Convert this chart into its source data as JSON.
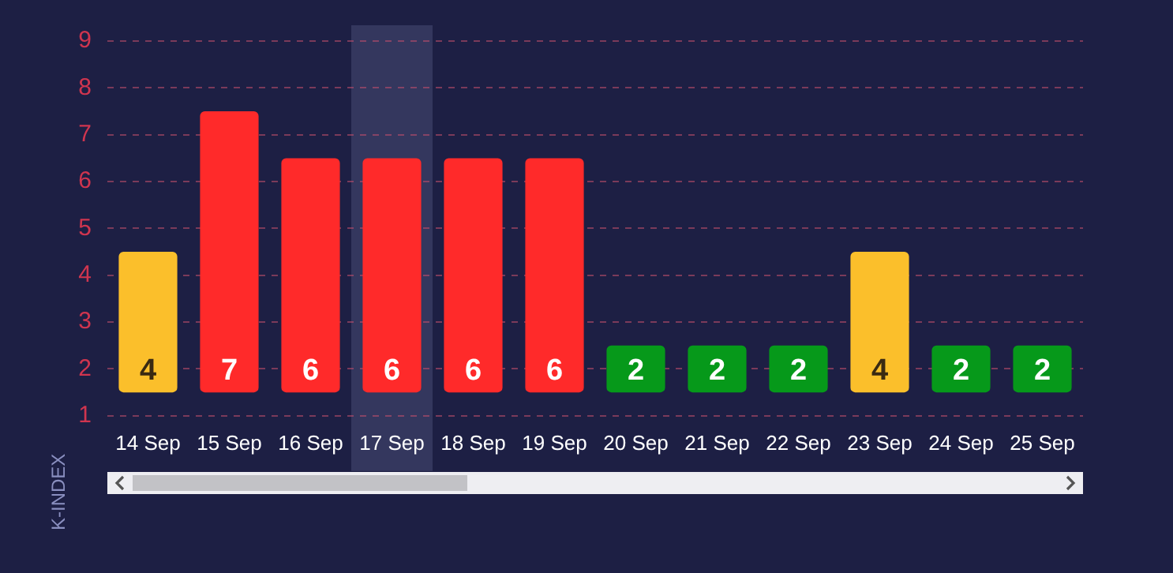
{
  "chart_data": {
    "type": "bar",
    "ylabel": "K-INDEX",
    "categories": [
      "14 Sep",
      "15 Sep",
      "16 Sep",
      "17 Sep",
      "18 Sep",
      "19 Sep",
      "20 Sep",
      "21 Sep",
      "22 Sep",
      "23 Sep",
      "24 Sep",
      "25 Sep"
    ],
    "base": [
      1.5,
      1.5,
      1.5,
      1.5,
      1.5,
      1.5,
      1.5,
      1.5,
      1.5,
      1.5,
      1.5,
      1.5
    ],
    "values": [
      3,
      6,
      5,
      5,
      5,
      5,
      1,
      1,
      1,
      3,
      1,
      1
    ],
    "value_labels": [
      "4",
      "7",
      "6",
      "6",
      "6",
      "6",
      "2",
      "2",
      "2",
      "4",
      "2",
      "2"
    ],
    "colors": [
      "#fbbf2b",
      "#ff2a2a",
      "#ff2a2a",
      "#ff2a2a",
      "#ff2a2a",
      "#ff2a2a",
      "#06991a",
      "#06991a",
      "#06991a",
      "#fbbf2b",
      "#06991a",
      "#06991a"
    ],
    "ylim": [
      1,
      9
    ],
    "yticks": [
      1,
      2,
      3,
      4,
      5,
      6,
      7,
      8,
      9
    ],
    "bands": [
      {
        "axis": "x",
        "from": "17 Sep",
        "to": "17 Sep",
        "color": "#34375e"
      }
    ],
    "grid": "y",
    "legend": false
  }
}
